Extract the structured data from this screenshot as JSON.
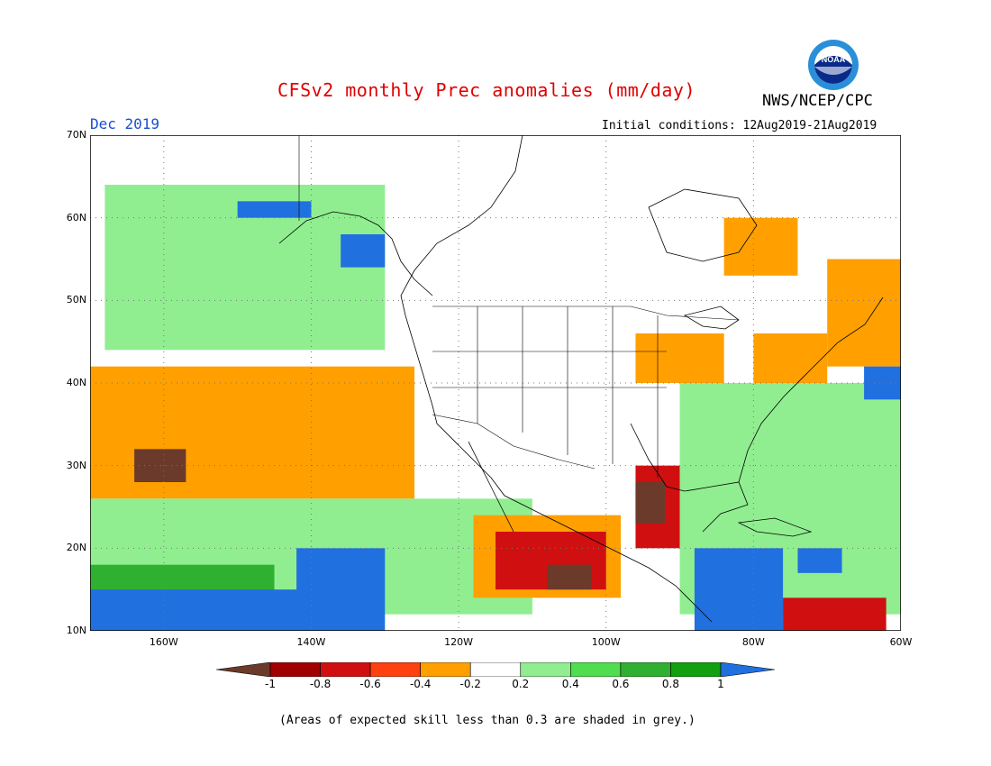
{
  "title": "CFSv2 monthly Prec anomalies (mm/day)",
  "agency": "NWS/NCEP/CPC",
  "logo_text": "NOAA",
  "forecast_month": "Dec 2019",
  "initial_conditions": "Initial conditions: 12Aug2019-21Aug2019",
  "footnote": "(Areas of expected skill less than 0.3 are shaded in grey.)",
  "map": {
    "projection": "lat-lon",
    "lon_range": [
      -170,
      -60
    ],
    "lat_range": [
      10,
      70
    ],
    "lat_labels": [
      "70N",
      "60N",
      "50N",
      "40N",
      "30N",
      "20N",
      "10N"
    ],
    "lon_labels": [
      "160W",
      "140W",
      "120W",
      "100W",
      "80W",
      "60W"
    ],
    "grid": "dotted"
  },
  "colorbar": {
    "labels": [
      "-1",
      "-0.8",
      "-0.6",
      "-0.4",
      "-0.2",
      "0.2",
      "0.4",
      "0.6",
      "0.8",
      "1"
    ],
    "colors": [
      "#6b3a2a",
      "#a00000",
      "#d01010",
      "#ff4010",
      "#ffa000",
      "#ffffff",
      "#90ee90",
      "#50dd50",
      "#30b030",
      "#10a010",
      "#2070e0"
    ]
  },
  "anomaly_regions": [
    {
      "level": "#30b030",
      "lon": [
        -152,
        -135
      ],
      "lat": [
        52,
        60
      ]
    },
    {
      "level": "#90ee90",
      "lon": [
        -168,
        -130
      ],
      "lat": [
        44,
        64
      ]
    },
    {
      "level": "#2070e0",
      "lon": [
        -136,
        -130
      ],
      "lat": [
        54,
        58
      ]
    },
    {
      "level": "#2070e0",
      "lon": [
        -150,
        -140
      ],
      "lat": [
        60,
        62
      ]
    },
    {
      "level": "#d01010",
      "lon": [
        -170,
        -130
      ],
      "lat": [
        27,
        40
      ]
    },
    {
      "level": "#ffa000",
      "lon": [
        -170,
        -126
      ],
      "lat": [
        26,
        42
      ]
    },
    {
      "level": "#6b3a2a",
      "lon": [
        -164,
        -157
      ],
      "lat": [
        28,
        32
      ]
    },
    {
      "level": "#90ee90",
      "lon": [
        -170,
        -110
      ],
      "lat": [
        12,
        26
      ]
    },
    {
      "level": "#30b030",
      "lon": [
        -170,
        -145
      ],
      "lat": [
        12,
        18
      ]
    },
    {
      "level": "#2070e0",
      "lon": [
        -170,
        -135
      ],
      "lat": [
        10,
        15
      ]
    },
    {
      "level": "#2070e0",
      "lon": [
        -142,
        -130
      ],
      "lat": [
        10,
        20
      ]
    },
    {
      "level": "#ffa000",
      "lon": [
        -118,
        -98
      ],
      "lat": [
        14,
        24
      ]
    },
    {
      "level": "#d01010",
      "lon": [
        -115,
        -100
      ],
      "lat": [
        15,
        22
      ]
    },
    {
      "level": "#6b3a2a",
      "lon": [
        -108,
        -102
      ],
      "lat": [
        15,
        18
      ]
    },
    {
      "level": "#d01010",
      "lon": [
        -96,
        -90
      ],
      "lat": [
        20,
        30
      ]
    },
    {
      "level": "#6b3a2a",
      "lon": [
        -96,
        -92
      ],
      "lat": [
        23,
        28
      ]
    },
    {
      "level": "#90ee90",
      "lon": [
        -90,
        -60
      ],
      "lat": [
        12,
        40
      ]
    },
    {
      "level": "#2070e0",
      "lon": [
        -88,
        -76
      ],
      "lat": [
        10,
        20
      ]
    },
    {
      "level": "#2070e0",
      "lon": [
        -74,
        -68
      ],
      "lat": [
        17,
        20
      ]
    },
    {
      "level": "#d01010",
      "lon": [
        -76,
        -62
      ],
      "lat": [
        10,
        14
      ]
    },
    {
      "level": "#ffa000",
      "lon": [
        -96,
        -84
      ],
      "lat": [
        40,
        46
      ]
    },
    {
      "level": "#ffa000",
      "lon": [
        -80,
        -70
      ],
      "lat": [
        40,
        46
      ]
    },
    {
      "level": "#ffa000",
      "lon": [
        -70,
        -60
      ],
      "lat": [
        42,
        55
      ]
    },
    {
      "level": "#ffa000",
      "lon": [
        -84,
        -74
      ],
      "lat": [
        53,
        60
      ]
    },
    {
      "level": "#2070e0",
      "lon": [
        -65,
        -60
      ],
      "lat": [
        38,
        42
      ]
    }
  ],
  "grey": "#e0e0e0"
}
